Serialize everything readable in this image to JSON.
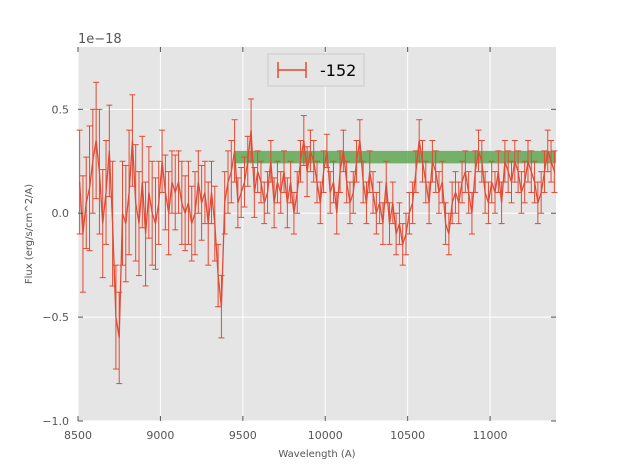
{
  "chart_data": {
    "type": "line",
    "xlabel": "Wavelength (A)",
    "ylabel": "Flux (erg/s/cm^2/A)",
    "offset_text": "1e−18",
    "xlim": [
      8500,
      11400
    ],
    "ylim": [
      -1.0,
      0.8
    ],
    "xticks": [
      8500,
      9000,
      9500,
      10000,
      10500,
      11000
    ],
    "xtick_labels": [
      "8500",
      "9000",
      "9500",
      "10000",
      "10500",
      "11000"
    ],
    "yticks": [
      0.5,
      0.0,
      -0.5,
      -1.0
    ],
    "ytick_labels": [
      "0.5",
      "0.0",
      "−0.5",
      "−1.0"
    ],
    "grid": true,
    "legend_position": "top-center",
    "colors": {
      "background": "#e5e5e5",
      "series": "#e24a33",
      "band": "#4d9d3e",
      "grid": "#ffffff"
    },
    "band": {
      "x": [
        9450,
        11400
      ],
      "y": [
        0.24,
        0.3
      ]
    },
    "series": [
      {
        "name": "-152",
        "x": [
          8510,
          8530,
          8550,
          8570,
          8590,
          8610,
          8630,
          8650,
          8670,
          8690,
          8710,
          8730,
          8750,
          8770,
          8790,
          8810,
          8830,
          8850,
          8870,
          8890,
          8910,
          8930,
          8950,
          8970,
          8990,
          9010,
          9030,
          9050,
          9070,
          9090,
          9110,
          9130,
          9150,
          9170,
          9190,
          9210,
          9230,
          9250,
          9270,
          9290,
          9310,
          9330,
          9350,
          9370,
          9390,
          9410,
          9430,
          9450,
          9470,
          9490,
          9510,
          9530,
          9550,
          9570,
          9590,
          9610,
          9630,
          9650,
          9670,
          9690,
          9710,
          9730,
          9750,
          9770,
          9790,
          9810,
          9830,
          9850,
          9870,
          9890,
          9910,
          9930,
          9950,
          9970,
          9990,
          10010,
          10030,
          10050,
          10070,
          10090,
          10110,
          10130,
          10150,
          10170,
          10190,
          10210,
          10230,
          10250,
          10270,
          10290,
          10310,
          10330,
          10350,
          10370,
          10390,
          10410,
          10430,
          10450,
          10470,
          10490,
          10510,
          10530,
          10550,
          10570,
          10590,
          10610,
          10630,
          10650,
          10670,
          10690,
          10710,
          10730,
          10750,
          10770,
          10790,
          10810,
          10830,
          10850,
          10870,
          10890,
          10910,
          10930,
          10950,
          10970,
          10990,
          11010,
          11030,
          11050,
          11070,
          11090,
          11110,
          11130,
          11150,
          11170,
          11190,
          11210,
          11230,
          11250,
          11270,
          11290,
          11310,
          11330,
          11350,
          11370,
          11390
        ],
        "y": [
          0.15,
          -0.1,
          0.05,
          0.12,
          0.25,
          0.35,
          0.2,
          -0.05,
          0.1,
          0.3,
          -0.05,
          -0.5,
          -0.6,
          0.0,
          -0.05,
          0.1,
          0.35,
          0.05,
          -0.05,
          0.15,
          -0.1,
          0.1,
          0.0,
          -0.05,
          0.05,
          0.25,
          0.1,
          0.0,
          0.15,
          0.1,
          0.15,
          0.05,
          0.0,
          0.05,
          -0.05,
          0.0,
          0.15,
          0.05,
          0.1,
          -0.05,
          0.1,
          -0.05,
          -0.3,
          -0.45,
          0.05,
          0.15,
          0.2,
          0.3,
          0.05,
          0.1,
          0.15,
          0.25,
          0.4,
          0.1,
          0.2,
          0.15,
          0.05,
          0.1,
          0.25,
          0.05,
          0.15,
          0.1,
          0.2,
          0.05,
          0.15,
          0.0,
          0.1,
          0.25,
          0.35,
          0.2,
          0.3,
          0.25,
          0.15,
          0.05,
          0.2,
          0.3,
          0.1,
          0.15,
          0.0,
          0.2,
          0.3,
          0.15,
          0.05,
          0.1,
          0.25,
          0.35,
          0.15,
          0.05,
          0.2,
          0.1,
          0.0,
          0.05,
          -0.05,
          0.15,
          -0.05,
          0.05,
          -0.1,
          -0.05,
          -0.15,
          -0.1,
          0.0,
          0.05,
          0.2,
          0.35,
          0.25,
          0.15,
          0.05,
          0.25,
          0.2,
          0.1,
          0.15,
          -0.05,
          -0.1,
          0.05,
          0.1,
          0.05,
          0.15,
          0.2,
          0.1,
          0.0,
          0.2,
          0.3,
          0.25,
          0.1,
          0.05,
          0.15,
          0.1,
          0.2,
          0.05,
          0.25,
          0.2,
          0.15,
          0.25,
          0.2,
          0.1,
          0.15,
          0.25,
          0.2,
          0.15,
          0.05,
          0.1,
          0.2,
          0.3,
          0.25,
          0.2
        ],
        "err": [
          0.25,
          0.28,
          0.22,
          0.3,
          0.25,
          0.28,
          0.3,
          0.26,
          0.25,
          0.22,
          0.3,
          0.25,
          0.22,
          0.25,
          0.28,
          0.3,
          0.22,
          0.28,
          0.25,
          0.22,
          0.25,
          0.22,
          0.25,
          0.22,
          0.2,
          0.15,
          0.18,
          0.2,
          0.15,
          0.18,
          0.15,
          0.2,
          0.18,
          0.2,
          0.18,
          0.2,
          0.15,
          0.18,
          0.15,
          0.2,
          0.15,
          0.18,
          0.15,
          0.15,
          0.15,
          0.15,
          0.15,
          0.15,
          0.12,
          0.12,
          0.12,
          0.12,
          0.15,
          0.12,
          0.1,
          0.1,
          0.1,
          0.1,
          0.1,
          0.12,
          0.1,
          0.1,
          0.1,
          0.12,
          0.1,
          0.1,
          0.1,
          0.1,
          0.12,
          0.12,
          0.1,
          0.1,
          0.1,
          0.1,
          0.1,
          0.08,
          0.1,
          0.1,
          0.1,
          0.1,
          0.1,
          0.1,
          0.1,
          0.1,
          0.1,
          0.1,
          0.1,
          0.1,
          0.1,
          0.1,
          0.1,
          0.1,
          0.1,
          0.1,
          0.1,
          0.1,
          0.1,
          0.1,
          0.1,
          0.1,
          0.1,
          0.1,
          0.1,
          0.1,
          0.1,
          0.1,
          0.1,
          0.1,
          0.1,
          0.1,
          0.1,
          0.1,
          0.1,
          0.1,
          0.1,
          0.1,
          0.1,
          0.1,
          0.1,
          0.1,
          0.1,
          0.1,
          0.1,
          0.1,
          0.1,
          0.1,
          0.1,
          0.1,
          0.1,
          0.1,
          0.1,
          0.1,
          0.1,
          0.1,
          0.1,
          0.1,
          0.1,
          0.1,
          0.1,
          0.1,
          0.1,
          0.1,
          0.1,
          0.1,
          0.1
        ]
      }
    ]
  }
}
